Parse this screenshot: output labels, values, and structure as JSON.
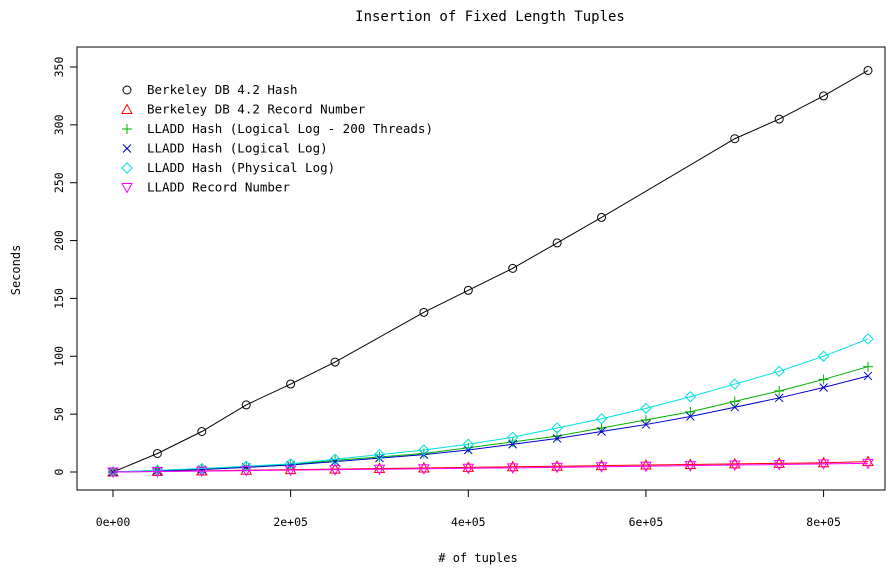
{
  "chart_data": {
    "type": "line",
    "title": "Insertion of Fixed Length Tuples",
    "xlabel": "# of tuples",
    "ylabel": "Seconds",
    "xlim": [
      0,
      850000
    ],
    "ylim": [
      0,
      350
    ],
    "xticks": [
      0,
      200000,
      400000,
      600000,
      800000
    ],
    "xtick_labels": [
      "0e+00",
      "2e+05",
      "4e+05",
      "6e+05",
      "8e+05"
    ],
    "yticks": [
      0,
      50,
      100,
      150,
      200,
      250,
      300,
      350
    ],
    "ytick_labels": [
      "0",
      "50",
      "100",
      "150",
      "200",
      "250",
      "300",
      "350"
    ],
    "grid": false,
    "legend_position": "top-left",
    "x": [
      0,
      50000,
      100000,
      150000,
      200000,
      250000,
      300000,
      350000,
      400000,
      450000,
      500000,
      550000,
      600000,
      650000,
      700000,
      750000,
      800000,
      850000
    ],
    "series": [
      {
        "name": "Berkeley DB 4.2 Hash",
        "marker": "circle",
        "color": "#000000",
        "values": [
          0,
          16,
          35,
          58,
          76,
          95,
          null,
          138,
          157,
          176,
          198,
          220,
          null,
          null,
          288,
          305,
          325,
          347
        ]
      },
      {
        "name": "Berkeley DB 4.2 Record Number",
        "marker": "triangle-up",
        "color": "#ff0000",
        "values": [
          0,
          0.5,
          1,
          1.5,
          2,
          2.5,
          3,
          3.5,
          4,
          4.5,
          5,
          5.5,
          6,
          6.5,
          7,
          7.5,
          8,
          9
        ]
      },
      {
        "name": "LLADD Hash (Logical Log - 200 Threads)",
        "marker": "plus",
        "color": "#00b000",
        "values": [
          0,
          1.5,
          2.5,
          4.5,
          6.5,
          10,
          13,
          16,
          21,
          26,
          31,
          38,
          45,
          52,
          61,
          70,
          80,
          91
        ]
      },
      {
        "name": "LLADD Hash (Logical Log)",
        "marker": "cross",
        "color": "#0000cc",
        "values": [
          0,
          1,
          2,
          4,
          6,
          9,
          12,
          15,
          19,
          24,
          29,
          35,
          41,
          48,
          56,
          64,
          73,
          83
        ]
      },
      {
        "name": "LLADD Hash (Physical Log)",
        "marker": "diamond",
        "color": "#00e0e0",
        "values": [
          0,
          1.5,
          3,
          5,
          7,
          11,
          15,
          19,
          24,
          30,
          38,
          46,
          55,
          65,
          76,
          87,
          100,
          115
        ]
      },
      {
        "name": "LLADD Record Number",
        "marker": "triangle-down",
        "color": "#ff00ff",
        "values": [
          0,
          0.4,
          0.8,
          1.2,
          1.6,
          2,
          2.4,
          2.8,
          3.2,
          3.6,
          4,
          4.5,
          5,
          5.5,
          6,
          6.5,
          7,
          7.5
        ]
      }
    ]
  }
}
